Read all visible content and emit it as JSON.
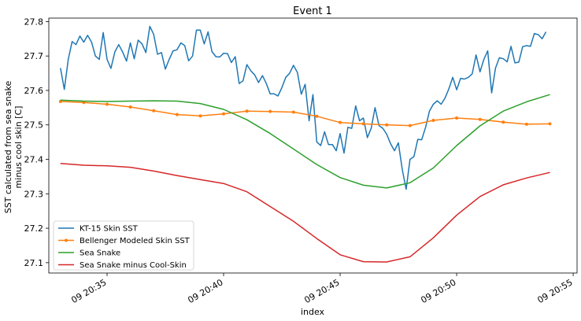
{
  "chart_data": {
    "type": "line",
    "title": "Event 1",
    "xlabel": "index",
    "ylabel": "SST calculated from sea snake\nminus cool skin [C]",
    "x_tick_labels": [
      "09 20:35",
      "09 20:40",
      "09 20:45",
      "09 20:50",
      "09 20:55"
    ],
    "x_ticks": [
      "20:35",
      "20:40",
      "20:45",
      "20:50",
      "20:55"
    ],
    "xlim": [
      "20:32:30",
      "20:55:10"
    ],
    "ylim": [
      27.07,
      27.81
    ],
    "y_ticks": [
      27.1,
      27.2,
      27.3,
      27.4,
      27.5,
      27.6,
      27.7,
      27.8
    ],
    "grid": false,
    "legend_position": "lower-left",
    "series": [
      {
        "name": "KT-15 Skin SST",
        "color": "#1f77b4",
        "marker": "none",
        "points": [
          [
            "20:33:00",
            27.665
          ],
          [
            "20:33:10",
            27.603
          ],
          [
            "20:33:20",
            27.69
          ],
          [
            "20:33:30",
            27.742
          ],
          [
            "20:33:40",
            27.733
          ],
          [
            "20:33:50",
            27.758
          ],
          [
            "20:34:00",
            27.74
          ],
          [
            "20:34:10",
            27.76
          ],
          [
            "20:34:20",
            27.74
          ],
          [
            "20:34:30",
            27.7
          ],
          [
            "20:34:40",
            27.69
          ],
          [
            "20:34:50",
            27.768
          ],
          [
            "20:35:00",
            27.69
          ],
          [
            "20:35:10",
            27.664
          ],
          [
            "20:35:20",
            27.712
          ],
          [
            "20:35:30",
            27.733
          ],
          [
            "20:35:40",
            27.712
          ],
          [
            "20:35:50",
            27.685
          ],
          [
            "20:36:00",
            27.738
          ],
          [
            "20:36:10",
            27.692
          ],
          [
            "20:36:20",
            27.746
          ],
          [
            "20:36:30",
            27.735
          ],
          [
            "20:36:40",
            27.71
          ],
          [
            "20:36:50",
            27.786
          ],
          [
            "20:37:00",
            27.763
          ],
          [
            "20:37:10",
            27.705
          ],
          [
            "20:37:20",
            27.71
          ],
          [
            "20:37:30",
            27.662
          ],
          [
            "20:37:40",
            27.69
          ],
          [
            "20:37:50",
            27.715
          ],
          [
            "20:38:00",
            27.718
          ],
          [
            "20:38:10",
            27.738
          ],
          [
            "20:38:20",
            27.73
          ],
          [
            "20:38:30",
            27.686
          ],
          [
            "20:38:40",
            27.7
          ],
          [
            "20:38:50",
            27.775
          ],
          [
            "20:39:00",
            27.775
          ],
          [
            "20:39:10",
            27.735
          ],
          [
            "20:39:20",
            27.77
          ],
          [
            "20:39:30",
            27.713
          ],
          [
            "20:39:40",
            27.698
          ],
          [
            "20:39:50",
            27.697
          ],
          [
            "20:40:00",
            27.708
          ],
          [
            "20:40:10",
            27.707
          ],
          [
            "20:40:20",
            27.681
          ],
          [
            "20:40:30",
            27.698
          ],
          [
            "20:40:40",
            27.62
          ],
          [
            "20:40:50",
            27.628
          ],
          [
            "20:41:00",
            27.675
          ],
          [
            "20:41:10",
            27.657
          ],
          [
            "20:41:20",
            27.645
          ],
          [
            "20:41:30",
            27.623
          ],
          [
            "20:41:40",
            27.643
          ],
          [
            "20:41:50",
            27.62
          ],
          [
            "20:42:00",
            27.59
          ],
          [
            "20:42:10",
            27.59
          ],
          [
            "20:42:20",
            27.584
          ],
          [
            "20:42:30",
            27.608
          ],
          [
            "20:42:40",
            27.638
          ],
          [
            "20:42:50",
            27.65
          ],
          [
            "20:43:00",
            27.673
          ],
          [
            "20:43:10",
            27.652
          ],
          [
            "20:43:20",
            27.589
          ],
          [
            "20:43:30",
            27.618
          ],
          [
            "20:43:40",
            27.512
          ],
          [
            "20:43:50",
            27.588
          ],
          [
            "20:44:00",
            27.45
          ],
          [
            "20:44:10",
            27.44
          ],
          [
            "20:44:20",
            27.48
          ],
          [
            "20:44:30",
            27.443
          ],
          [
            "20:44:40",
            27.443
          ],
          [
            "20:44:50",
            27.425
          ],
          [
            "20:45:00",
            27.475
          ],
          [
            "20:45:10",
            27.418
          ],
          [
            "20:45:20",
            27.493
          ],
          [
            "20:45:30",
            27.49
          ],
          [
            "20:45:40",
            27.555
          ],
          [
            "20:45:50",
            27.512
          ],
          [
            "20:46:00",
            27.52
          ],
          [
            "20:46:10",
            27.463
          ],
          [
            "20:46:20",
            27.49
          ],
          [
            "20:46:30",
            27.55
          ],
          [
            "20:46:40",
            27.498
          ],
          [
            "20:46:50",
            27.49
          ],
          [
            "20:47:00",
            27.473
          ],
          [
            "20:47:10",
            27.445
          ],
          [
            "20:47:20",
            27.425
          ],
          [
            "20:47:30",
            27.448
          ],
          [
            "20:47:40",
            27.37
          ],
          [
            "20:47:50",
            27.313
          ],
          [
            "20:48:00",
            27.4
          ],
          [
            "20:48:10",
            27.408
          ],
          [
            "20:48:20",
            27.458
          ],
          [
            "20:48:30",
            27.457
          ],
          [
            "20:48:40",
            27.493
          ],
          [
            "20:48:50",
            27.54
          ],
          [
            "20:49:00",
            27.56
          ],
          [
            "20:49:10",
            27.57
          ],
          [
            "20:49:20",
            27.56
          ],
          [
            "20:49:30",
            27.578
          ],
          [
            "20:49:40",
            27.605
          ],
          [
            "20:49:50",
            27.638
          ],
          [
            "20:50:00",
            27.602
          ],
          [
            "20:50:10",
            27.635
          ],
          [
            "20:50:20",
            27.633
          ],
          [
            "20:50:30",
            27.638
          ],
          [
            "20:50:40",
            27.648
          ],
          [
            "20:50:50",
            27.703
          ],
          [
            "20:51:00",
            27.654
          ],
          [
            "20:51:10",
            27.69
          ],
          [
            "20:51:20",
            27.715
          ],
          [
            "20:51:30",
            27.593
          ],
          [
            "20:51:40",
            27.665
          ],
          [
            "20:51:50",
            27.695
          ],
          [
            "20:52:00",
            27.692
          ],
          [
            "20:52:10",
            27.683
          ],
          [
            "20:52:20",
            27.728
          ],
          [
            "20:52:30",
            27.68
          ],
          [
            "20:52:40",
            27.682
          ],
          [
            "20:52:50",
            27.727
          ],
          [
            "20:53:00",
            27.73
          ],
          [
            "20:53:10",
            27.728
          ],
          [
            "20:53:20",
            27.765
          ],
          [
            "20:53:30",
            27.762
          ],
          [
            "20:53:40",
            27.75
          ],
          [
            "20:53:50",
            27.77
          ]
        ]
      },
      {
        "name": "Bellenger Modeled Skin SST",
        "color": "#ff7f0e",
        "marker": "dot",
        "points": [
          [
            "20:33:00",
            27.568
          ],
          [
            "20:34:00",
            27.565
          ],
          [
            "20:35:00",
            27.56
          ],
          [
            "20:36:00",
            27.552
          ],
          [
            "20:37:00",
            27.541
          ],
          [
            "20:38:00",
            27.53
          ],
          [
            "20:39:00",
            27.526
          ],
          [
            "20:40:00",
            27.532
          ],
          [
            "20:41:00",
            27.54
          ],
          [
            "20:42:00",
            27.539
          ],
          [
            "20:43:00",
            27.537
          ],
          [
            "20:44:00",
            27.525
          ],
          [
            "20:45:00",
            27.507
          ],
          [
            "20:46:00",
            27.503
          ],
          [
            "20:47:00",
            27.5
          ],
          [
            "20:48:00",
            27.498
          ],
          [
            "20:49:00",
            27.513
          ],
          [
            "20:50:00",
            27.52
          ],
          [
            "20:51:00",
            27.516
          ],
          [
            "20:52:00",
            27.508
          ],
          [
            "20:53:00",
            27.502
          ],
          [
            "20:54:00",
            27.503
          ]
        ]
      },
      {
        "name": "Sea Snake",
        "color": "#2ca02c",
        "marker": "none",
        "points": [
          [
            "20:33:00",
            27.572
          ],
          [
            "20:34:00",
            27.569
          ],
          [
            "20:35:00",
            27.568
          ],
          [
            "20:36:00",
            27.569
          ],
          [
            "20:37:00",
            27.57
          ],
          [
            "20:38:00",
            27.569
          ],
          [
            "20:39:00",
            27.562
          ],
          [
            "20:40:00",
            27.545
          ],
          [
            "20:41:00",
            27.515
          ],
          [
            "20:42:00",
            27.475
          ],
          [
            "20:43:00",
            27.43
          ],
          [
            "20:44:00",
            27.385
          ],
          [
            "20:45:00",
            27.347
          ],
          [
            "20:46:00",
            27.325
          ],
          [
            "20:47:00",
            27.317
          ],
          [
            "20:48:00",
            27.332
          ],
          [
            "20:49:00",
            27.375
          ],
          [
            "20:50:00",
            27.44
          ],
          [
            "20:51:00",
            27.497
          ],
          [
            "20:52:00",
            27.54
          ],
          [
            "20:53:00",
            27.567
          ],
          [
            "20:54:00",
            27.588
          ]
        ]
      },
      {
        "name": "Sea Snake minus Cool-Skin",
        "color": "#d62728",
        "marker": "none",
        "points": [
          [
            "20:33:00",
            27.388
          ],
          [
            "20:34:00",
            27.383
          ],
          [
            "20:35:00",
            27.381
          ],
          [
            "20:36:00",
            27.377
          ],
          [
            "20:37:00",
            27.366
          ],
          [
            "20:38:00",
            27.353
          ],
          [
            "20:39:00",
            27.341
          ],
          [
            "20:40:00",
            27.33
          ],
          [
            "20:41:00",
            27.306
          ],
          [
            "20:42:00",
            27.263
          ],
          [
            "20:43:00",
            27.22
          ],
          [
            "20:44:00",
            27.17
          ],
          [
            "20:45:00",
            27.123
          ],
          [
            "20:46:00",
            27.103
          ],
          [
            "20:47:00",
            27.102
          ],
          [
            "20:48:00",
            27.117
          ],
          [
            "20:49:00",
            27.172
          ],
          [
            "20:50:00",
            27.238
          ],
          [
            "20:51:00",
            27.292
          ],
          [
            "20:52:00",
            27.326
          ],
          [
            "20:53:00",
            27.346
          ],
          [
            "20:54:00",
            27.362
          ]
        ]
      }
    ]
  }
}
